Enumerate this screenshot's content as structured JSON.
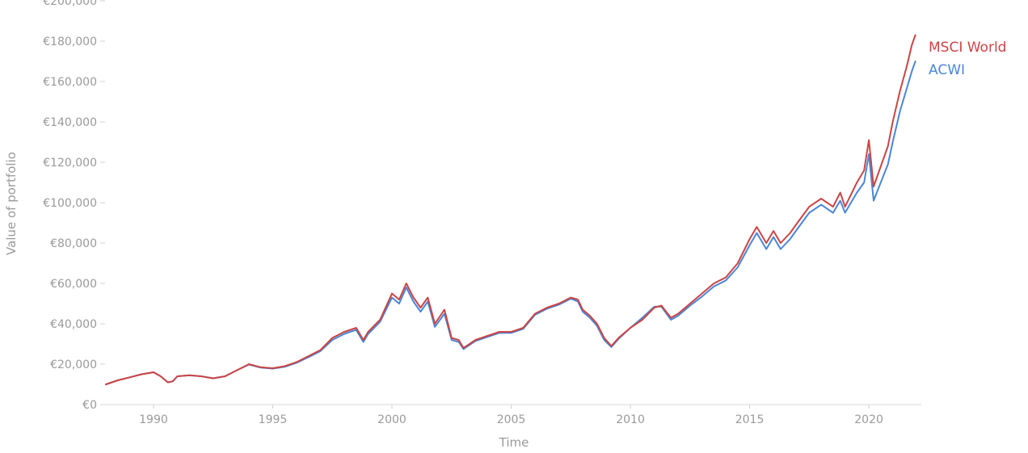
{
  "chart_data": {
    "type": "line",
    "xlabel": "Time",
    "ylabel": "Value of portfolio",
    "xlim": [
      1987.9,
      2022.2
    ],
    "ylim": [
      0,
      200000
    ],
    "x_ticks": [
      1990,
      1995,
      2000,
      2005,
      2010,
      2015,
      2020
    ],
    "x_tick_labels": [
      "1990",
      "1995",
      "2000",
      "2005",
      "2010",
      "2015",
      "2020"
    ],
    "y_ticks": [
      0,
      20000,
      40000,
      60000,
      80000,
      100000,
      120000,
      140000,
      160000,
      180000,
      200000
    ],
    "y_tick_labels": [
      "€0",
      "€20,000",
      "€40,000",
      "€60,000",
      "€80,000",
      "€100,000",
      "€120,000",
      "€140,000",
      "€160,000",
      "€180,000",
      "€200,000"
    ],
    "grid": false,
    "legend": "inline-right",
    "x": [
      1988.0,
      1988.5,
      1989.0,
      1989.5,
      1990.0,
      1990.3,
      1990.6,
      1990.8,
      1991.0,
      1991.5,
      1992.0,
      1992.5,
      1993.0,
      1993.5,
      1994.0,
      1994.5,
      1995.0,
      1995.5,
      1996.0,
      1996.5,
      1997.0,
      1997.5,
      1998.0,
      1998.5,
      1998.8,
      1999.0,
      1999.5,
      2000.0,
      2000.3,
      2000.6,
      2000.9,
      2001.2,
      2001.5,
      2001.8,
      2002.2,
      2002.5,
      2002.8,
      2003.0,
      2003.5,
      2004.0,
      2004.5,
      2005.0,
      2005.5,
      2006.0,
      2006.5,
      2007.0,
      2007.5,
      2007.8,
      2008.0,
      2008.3,
      2008.6,
      2008.9,
      2009.2,
      2009.5,
      2010.0,
      2010.5,
      2011.0,
      2011.3,
      2011.7,
      2012.0,
      2012.5,
      2013.0,
      2013.5,
      2014.0,
      2014.5,
      2015.0,
      2015.3,
      2015.7,
      2016.0,
      2016.3,
      2016.7,
      2017.0,
      2017.5,
      2018.0,
      2018.5,
      2018.8,
      2019.0,
      2019.5,
      2019.8,
      2020.0,
      2020.2,
      2020.5,
      2020.8,
      2021.0,
      2021.3,
      2021.6,
      2021.8,
      2021.95
    ],
    "series": [
      {
        "name": "MSCI World",
        "color": "#cc4444",
        "values": [
          10000,
          12000,
          13500,
          15000,
          16000,
          14000,
          11000,
          11500,
          14000,
          14500,
          14000,
          13000,
          14000,
          17000,
          20000,
          18500,
          18000,
          19000,
          21000,
          24000,
          27000,
          33000,
          36000,
          38000,
          32000,
          36000,
          42000,
          55000,
          52000,
          60000,
          53000,
          48000,
          53000,
          40000,
          47000,
          33000,
          32000,
          28000,
          32000,
          34000,
          36000,
          36000,
          38000,
          45000,
          48000,
          50000,
          53000,
          52000,
          47000,
          44000,
          40000,
          33000,
          29000,
          33000,
          38000,
          42000,
          48000,
          49000,
          43000,
          45000,
          50000,
          55000,
          60000,
          63000,
          70000,
          82000,
          88000,
          80000,
          86000,
          80000,
          85000,
          90000,
          98000,
          102000,
          98000,
          105000,
          98000,
          110000,
          116000,
          131000,
          108000,
          118000,
          128000,
          140000,
          155000,
          168000,
          178000,
          183000
        ]
      },
      {
        "name": "ACWI",
        "color": "#4a86d8",
        "values": [
          10000,
          12000,
          13500,
          15000,
          16000,
          14000,
          11000,
          11500,
          14000,
          14500,
          14000,
          13000,
          14000,
          17000,
          19800,
          18300,
          17800,
          18700,
          20700,
          23500,
          26500,
          32000,
          35000,
          37000,
          31000,
          35000,
          41000,
          53000,
          50000,
          58000,
          51000,
          46000,
          51000,
          38500,
          45000,
          32000,
          31000,
          27500,
          31500,
          33500,
          35500,
          35500,
          37500,
          44500,
          47500,
          49500,
          52500,
          51000,
          46000,
          43000,
          39000,
          32000,
          28500,
          32500,
          38000,
          43000,
          48500,
          48500,
          42000,
          44000,
          49000,
          53500,
          58500,
          61500,
          68000,
          79000,
          85000,
          77000,
          83000,
          77000,
          82000,
          87000,
          95000,
          99000,
          95000,
          101000,
          95000,
          105000,
          110000,
          124000,
          101000,
          110000,
          119000,
          130000,
          145000,
          157000,
          165000,
          170000
        ]
      }
    ]
  }
}
